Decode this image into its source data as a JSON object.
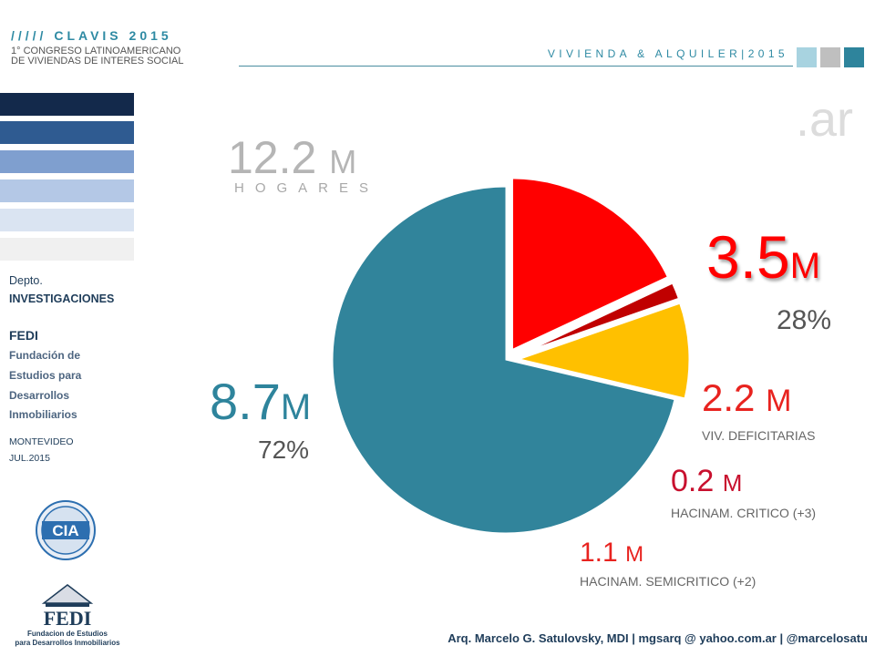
{
  "header": {
    "title": "///// CLAVIS 2015",
    "subtitle_line1": "1° CONGRESO LATINOAMERICANO",
    "subtitle_line2": "DE VIVIENDAS DE INTERES SOCIAL",
    "right_title": "VIVIENDA & ALQUILER|2015",
    "squares": [
      "#a8d3e0",
      "#bfbfbf",
      "#2e849c"
    ],
    "domain_suffix": ".ar"
  },
  "sidebar": {
    "bars": [
      "#13294b",
      "#2f5b91",
      "#7f9fcf",
      "#b4c8e6",
      "#dae4f2",
      "#f0f0f0"
    ],
    "dept_label": "Depto.",
    "dept_name": "INVESTIGACIONES",
    "org_short": "FEDI",
    "org_line1": "Fundación de",
    "org_line2": "Estudios para",
    "org_line3": "Desarrollos",
    "org_line4": "Inmobiliarios",
    "city": "MONTEVIDEO",
    "date": "JUL.2015",
    "cia_logo_text": "CIA",
    "fedi_logo_title": "FEDI",
    "fedi_logo_line1": "Fundacion de Estudios",
    "fedi_logo_line2": "para Desarrollos Inmobiliarios"
  },
  "footer": {
    "credit": "Arq. Marcelo G. Satulovsky, MDI | mgsarq @ yahoo.com.ar | @marcelosatu"
  },
  "labels": {
    "total_value": "12.2",
    "total_unit": "M",
    "total_caption": "HOGARES",
    "main_value": "8.7",
    "main_unit": "M",
    "main_pct": "72%",
    "def_value": "3.5",
    "def_unit": "M",
    "def_pct": "28%",
    "viv_value": "2.2",
    "viv_unit": "M",
    "viv_caption": "VIV. DEFICITARIAS",
    "crit_value": "0.2",
    "crit_unit": "M",
    "crit_caption": "HACINAM. CRITICO (+3)",
    "semi_value": "1.1",
    "semi_unit": "M",
    "semi_caption": "HACINAM. SEMICRITICO (+2)"
  },
  "chart_data": {
    "type": "pie",
    "title": "",
    "slices": [
      {
        "label": "VIV. DEFICITARIAS",
        "value": 2.2,
        "color": "#ff0000",
        "exploded": true
      },
      {
        "label": "HACINAM. CRITICO (+3)",
        "value": 0.2,
        "color": "#c00000",
        "exploded": true
      },
      {
        "label": "HACINAM. SEMICRITICO (+2)",
        "value": 1.1,
        "color": "#ffc000",
        "exploded": true
      },
      {
        "label": "",
        "value": 8.7,
        "color": "#31849b",
        "exploded": false
      }
    ],
    "total": 12.2,
    "start_angle_deg": 0
  }
}
